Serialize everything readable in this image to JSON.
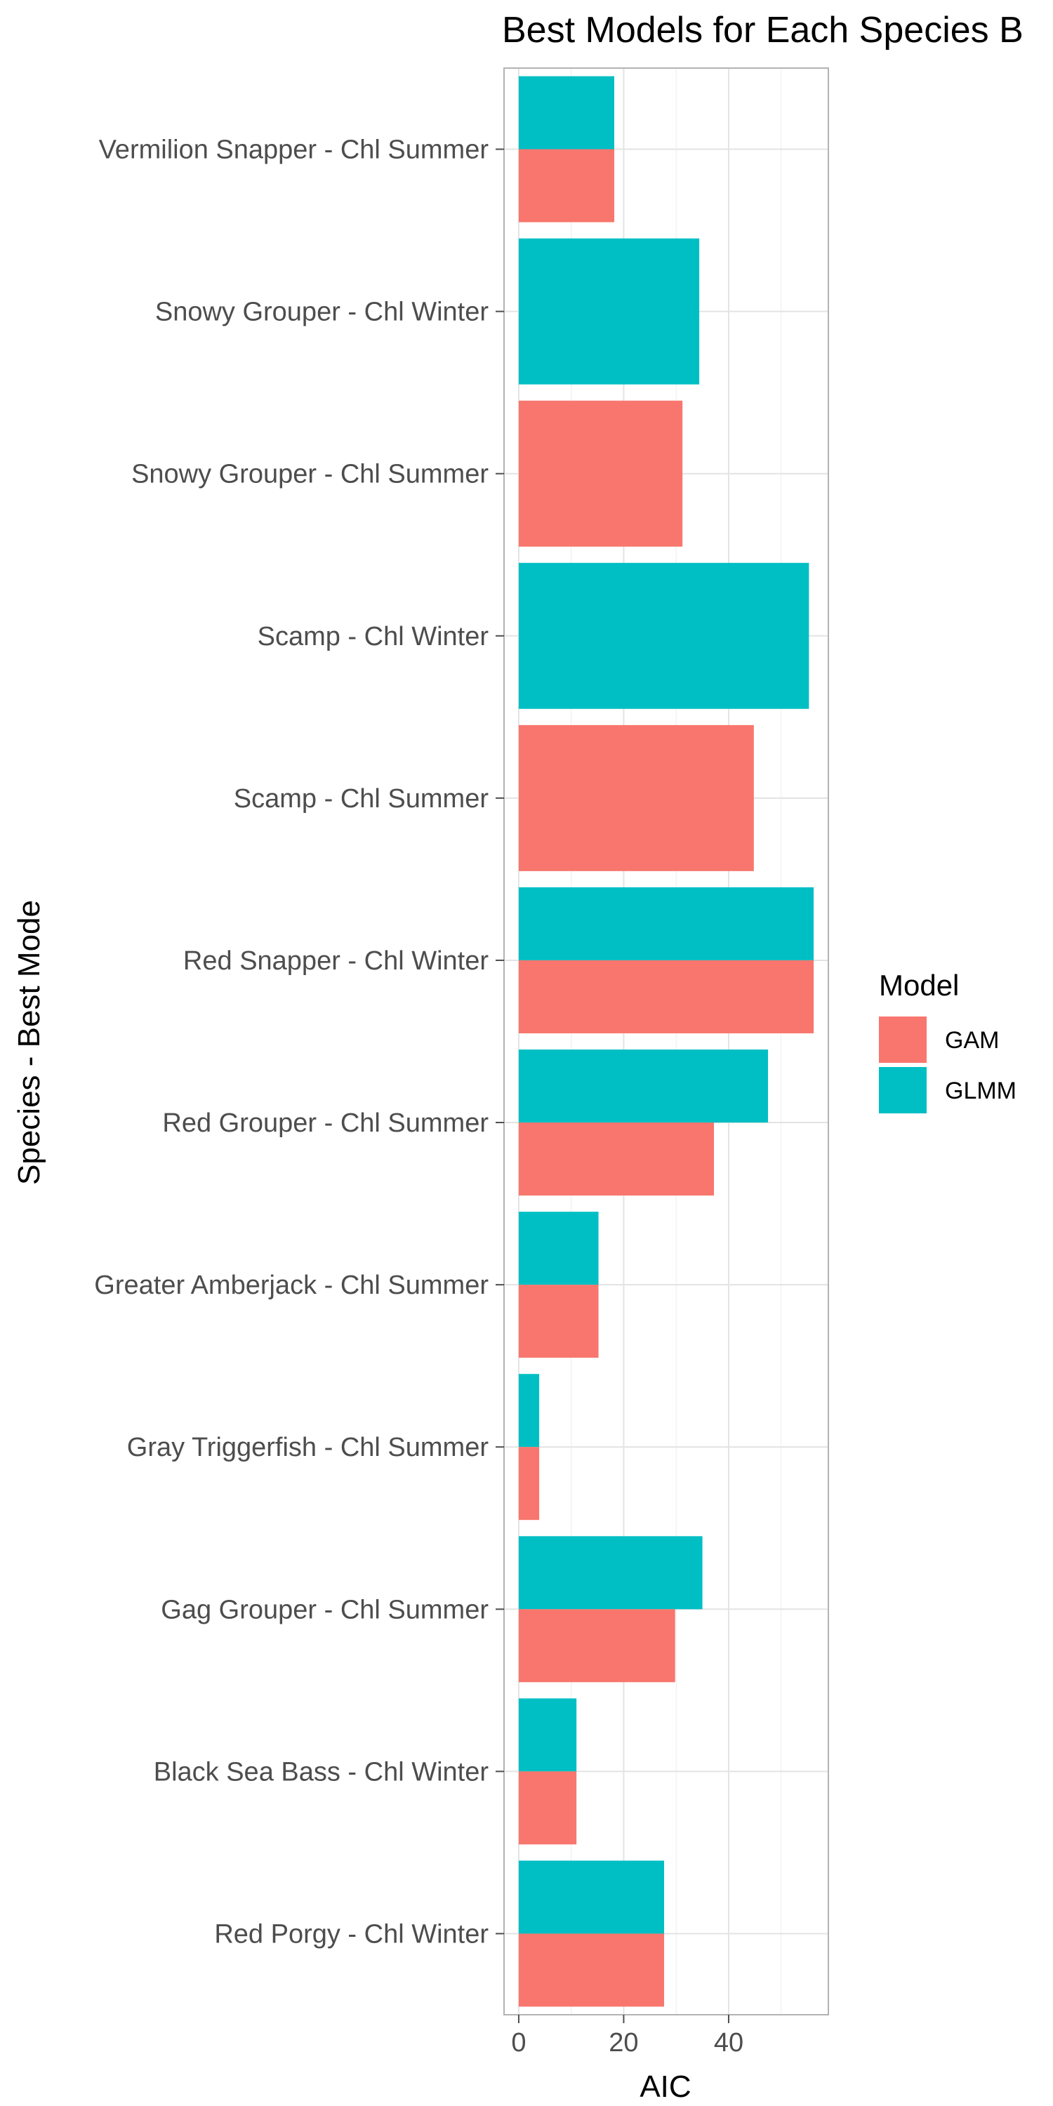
{
  "chart_data": {
    "type": "bar",
    "orientation": "horizontal",
    "title": "Best Models for Each Species B",
    "xlabel": "AIC",
    "ylabel": "Species - Best Mode",
    "xlim": [
      -2.8,
      59
    ],
    "xticks": [
      0,
      20,
      40
    ],
    "grid": true,
    "legend": {
      "title": "Model",
      "position": "right"
    },
    "categories": [
      "Vermilion Snapper - Chl Summer",
      "Snowy Grouper  - Chl Winter",
      "Snowy Grouper  - Chl Summer",
      "Scamp - Chl Winter",
      "Scamp - Chl Summer",
      "Red Snapper - Chl Winter",
      "Red Grouper - Chl Summer",
      "Greater Amberjack - Chl Summer",
      "Gray Triggerfish - Chl Summer",
      "Gag Grouper - Chl Summer",
      "Black Sea Bass - Chl Winter",
      "Red Porgy - Chl Winter"
    ],
    "series": [
      {
        "name": "GAM",
        "color": "#F8766D",
        "values": [
          18.2,
          null,
          31.2,
          null,
          44.8,
          56.2,
          37.2,
          15.2,
          3.9,
          29.8,
          11.0,
          27.7
        ]
      },
      {
        "name": "GLMM",
        "color": "#00BFC4",
        "values": [
          18.2,
          34.4,
          null,
          55.3,
          null,
          56.2,
          47.5,
          15.2,
          3.9,
          35.0,
          11.0,
          27.7
        ]
      }
    ]
  }
}
